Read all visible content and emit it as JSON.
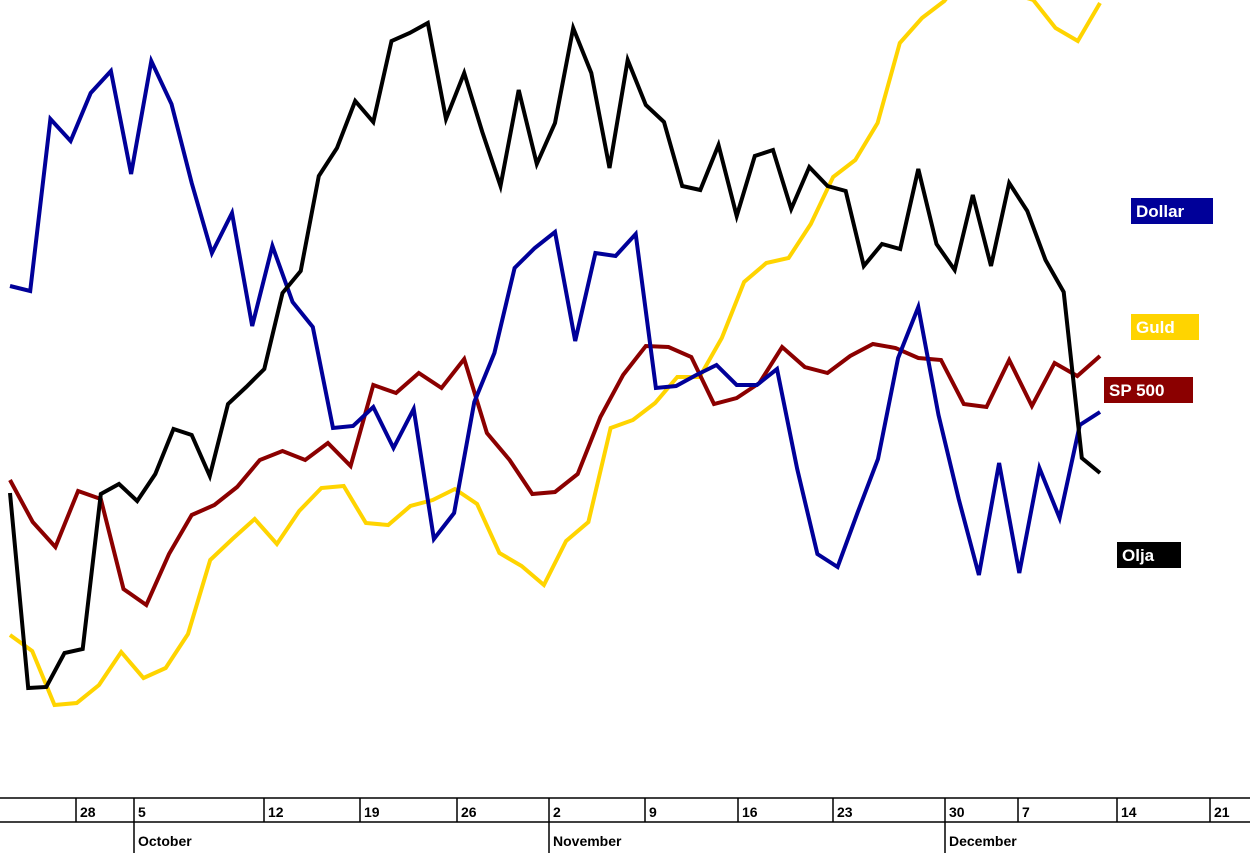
{
  "chart_data": {
    "type": "line",
    "title": "",
    "xlabel": "",
    "ylabel": "",
    "x_ticks": [
      "28",
      "5",
      "12",
      "19",
      "26",
      "2",
      "9",
      "16",
      "23",
      "30",
      "7",
      "14",
      "21"
    ],
    "months": [
      "October",
      "November",
      "December"
    ],
    "y_units": "relative (pixel-scale, inverted: higher value = higher on chart)",
    "ylim": [
      0,
      853
    ],
    "grid": false,
    "legend_placement": "right (labels at line ends)",
    "series": [
      {
        "name": "Dollar",
        "color": "#000099",
        "values": [
          567,
          562,
          734,
          712,
          760,
          782,
          679,
          792,
          749,
          670,
          600,
          640,
          527,
          607,
          551,
          526,
          425,
          427,
          446,
          405,
          444,
          314,
          340,
          451,
          500,
          585,
          605,
          621,
          512,
          600,
          597,
          619,
          465,
          467,
          478,
          488,
          468,
          468,
          484,
          384,
          299,
          286,
          341,
          394,
          495,
          546,
          438,
          354,
          278,
          390,
          280,
          385,
          335,
          428,
          441
        ]
      },
      {
        "name": "Guld",
        "color": "#ffd400",
        "values": [
          218,
          202,
          148,
          150,
          168,
          201,
          175,
          185,
          219,
          293,
          314,
          334,
          309,
          342,
          365,
          367,
          330,
          328,
          347,
          353,
          364,
          349,
          300,
          287,
          268,
          312,
          331,
          425,
          433,
          450,
          476,
          476,
          515,
          571,
          590,
          595,
          629,
          676,
          693,
          730,
          810,
          835,
          852,
          880,
          882,
          860,
          853,
          825,
          812,
          850
        ]
      },
      {
        "name": "SP 500",
        "color": "#8b0000",
        "values": [
          373,
          331,
          306,
          362,
          354,
          264,
          248,
          299,
          338,
          348,
          366,
          393,
          402,
          393,
          410,
          387,
          468,
          460,
          480,
          465,
          494,
          420,
          393,
          359,
          361,
          379,
          436,
          478,
          507,
          506,
          496,
          449,
          455,
          470,
          506,
          486,
          480,
          497,
          509,
          505,
          495,
          493,
          449,
          446,
          493,
          447,
          490,
          477,
          497
        ]
      },
      {
        "name": "Olja",
        "color": "#000000",
        "values": [
          360,
          165,
          166,
          200,
          204,
          359,
          369,
          352,
          379,
          424,
          418,
          377,
          449,
          466,
          484,
          560,
          582,
          677,
          705,
          752,
          731,
          812,
          820,
          830,
          734,
          780,
          721,
          667,
          763,
          689,
          730,
          825,
          780,
          685,
          793,
          748,
          731,
          667,
          663,
          708,
          637,
          697,
          703,
          644,
          686,
          667,
          662,
          587,
          609,
          604,
          684,
          609,
          583,
          658,
          587,
          670,
          642,
          593,
          561,
          395,
          380
        ]
      }
    ]
  },
  "legend": {
    "dollar": "Dollar",
    "guld": "Guld",
    "sp500": "SP 500",
    "olja": "Olja"
  }
}
